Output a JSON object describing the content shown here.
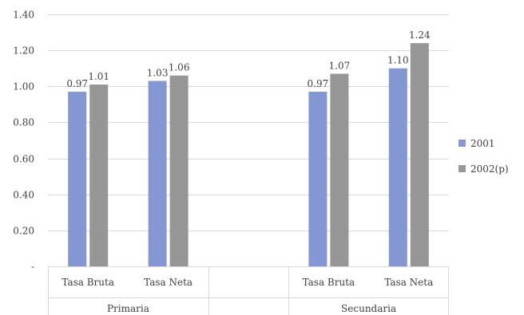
{
  "chart_data": {
    "type": "bar",
    "groups": [
      {
        "label": "Primaria",
        "categories": [
          "Tasa Bruta",
          "Tasa Neta"
        ]
      },
      {
        "label": "",
        "categories": [
          ""
        ]
      },
      {
        "label": "Secundaria",
        "categories": [
          "Tasa Bruta",
          "Tasa Neta"
        ]
      }
    ],
    "series": [
      {
        "name": "2001",
        "color": "#8497d3",
        "values": [
          0.97,
          1.03,
          null,
          0.97,
          1.1
        ],
        "labels": [
          "0.97",
          "1.03",
          "",
          "0.97",
          "1.10"
        ]
      },
      {
        "name": "2002(p)",
        "color": "#969696",
        "values": [
          1.01,
          1.06,
          null,
          1.07,
          1.24
        ],
        "labels": [
          "1.01",
          "1.06",
          "",
          "1.07",
          "1.24"
        ]
      }
    ],
    "ylim": [
      0,
      1.4
    ],
    "yticks": [
      0,
      0.2,
      0.4,
      0.6,
      0.8,
      1.0,
      1.2,
      1.4
    ],
    "ytick_labels": [
      "-",
      "0.20",
      "0.40",
      "0.60",
      "0.80",
      "1.00",
      "1.20",
      "1.40"
    ],
    "grid": true,
    "legend_position": "right"
  }
}
